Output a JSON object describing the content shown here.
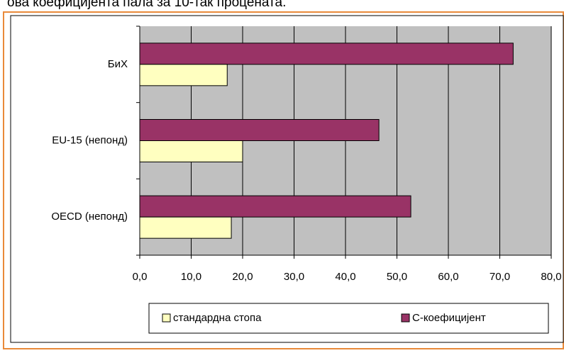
{
  "caption": "ова коефицијента пала за 10-так процената.",
  "chart_data": {
    "type": "hbar",
    "categories": [
      "БиХ",
      "EU-15 (непонд)",
      "OECD (непонд)"
    ],
    "series": [
      {
        "name": "стандардна стопа",
        "color": "#ffffc0",
        "values": [
          17.0,
          20.0,
          17.8
        ]
      },
      {
        "name": "С-коефицијент",
        "color": "#993366",
        "values": [
          72.6,
          46.5,
          52.7
        ]
      }
    ],
    "xlim": [
      0,
      80
    ],
    "xticks": [
      {
        "value": 0,
        "label": "0,0"
      },
      {
        "value": 10,
        "label": "10,0"
      },
      {
        "value": 20,
        "label": "20,0"
      },
      {
        "value": 30,
        "label": "30,0"
      },
      {
        "value": 40,
        "label": "40,0"
      },
      {
        "value": 50,
        "label": "50,0"
      },
      {
        "value": 60,
        "label": "60,0"
      },
      {
        "value": 70,
        "label": "70,0"
      },
      {
        "value": 80,
        "label": "80,0"
      }
    ],
    "grid": true,
    "background": "#c0c0c0"
  }
}
